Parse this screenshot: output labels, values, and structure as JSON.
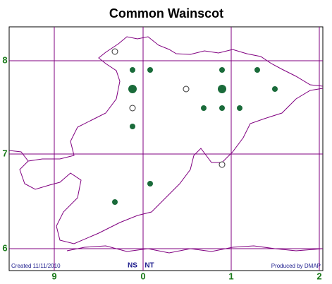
{
  "title": "Common Wainscot",
  "grid": {
    "y_labels": [
      "8",
      "7",
      "6"
    ],
    "x_labels": [
      "9",
      "0",
      "1",
      "2"
    ]
  },
  "footer": {
    "created": "Created 11/11/2010",
    "ns": "NS",
    "nt": "NT",
    "produced": "Produced by DMAP"
  }
}
